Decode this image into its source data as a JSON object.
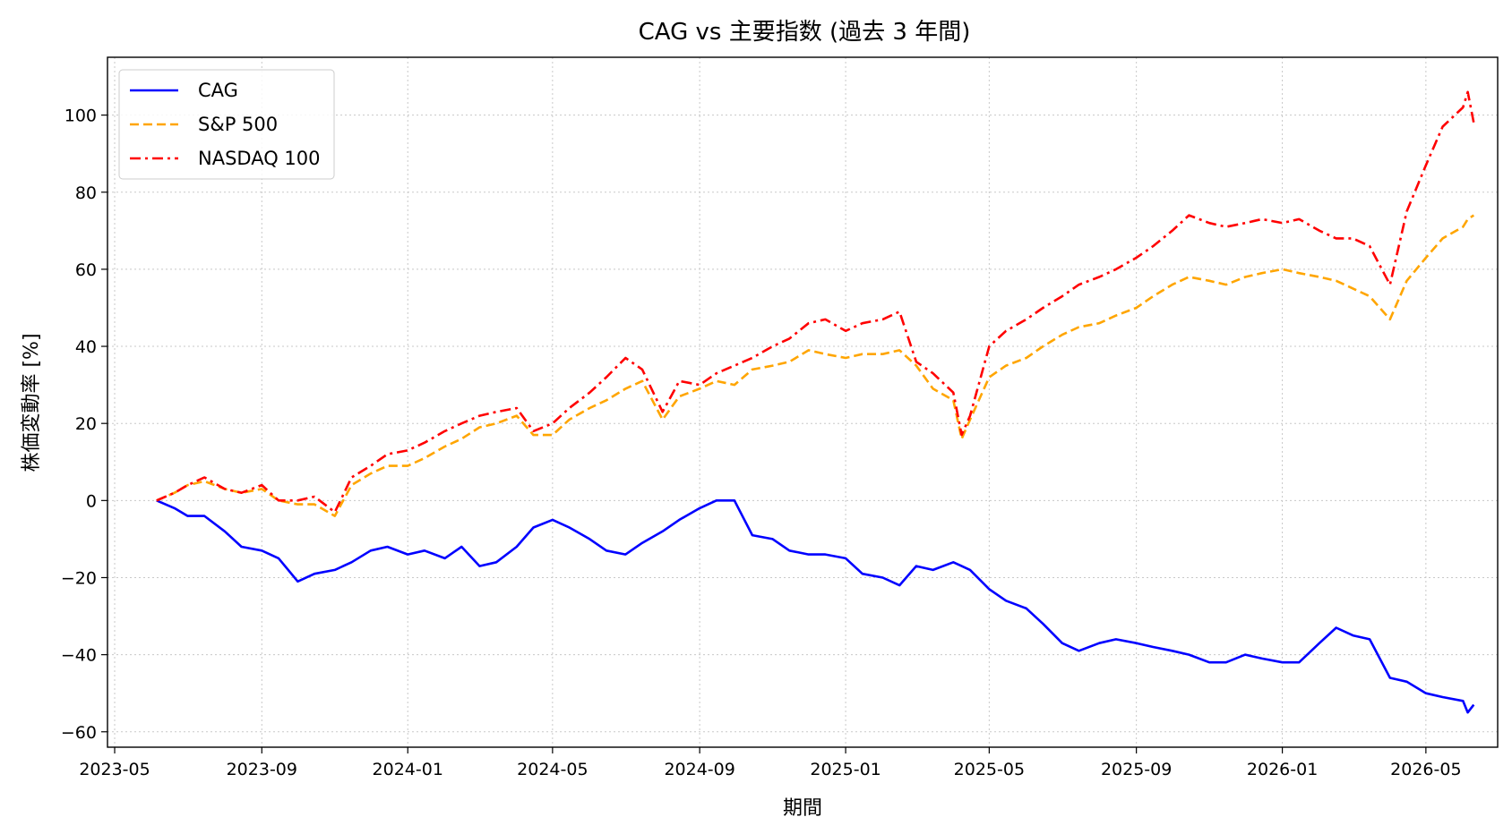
{
  "chart_data": {
    "type": "line",
    "title": "CAG vs 主要指数 (過去 3 年間)",
    "xlabel": "期間",
    "ylabel": "株価変動率 [%]",
    "x_ticks": [
      "2023-05",
      "2023-09",
      "2024-01",
      "2024-05",
      "2024-09",
      "2025-01",
      "2025-05",
      "2025-09",
      "2026-01",
      "2026-05"
    ],
    "y_ticks": [
      "−60",
      "−40",
      "−20",
      "0",
      "20",
      "40",
      "60",
      "80",
      "100"
    ],
    "xlim": [
      "2023-04-25",
      "2026-06-30"
    ],
    "ylim": [
      -64,
      115
    ],
    "grid": true,
    "legend_position": "top-left",
    "x": [
      "2023-06-05",
      "2023-06-20",
      "2023-07-01",
      "2023-07-15",
      "2023-08-01",
      "2023-08-15",
      "2023-09-01",
      "2023-09-15",
      "2023-10-01",
      "2023-10-15",
      "2023-11-01",
      "2023-11-15",
      "2023-12-01",
      "2023-12-15",
      "2024-01-01",
      "2024-01-15",
      "2024-02-01",
      "2024-02-15",
      "2024-03-01",
      "2024-03-15",
      "2024-04-01",
      "2024-04-15",
      "2024-05-01",
      "2024-05-15",
      "2024-06-01",
      "2024-06-15",
      "2024-07-01",
      "2024-07-15",
      "2024-08-01",
      "2024-08-15",
      "2024-09-01",
      "2024-09-15",
      "2024-09-30",
      "2024-10-15",
      "2024-11-01",
      "2024-11-15",
      "2024-12-01",
      "2024-12-15",
      "2025-01-01",
      "2025-01-15",
      "2025-02-01",
      "2025-02-15",
      "2025-03-01",
      "2025-03-15",
      "2025-04-01",
      "2025-04-08",
      "2025-04-15",
      "2025-05-01",
      "2025-05-15",
      "2025-06-01",
      "2025-06-15",
      "2025-07-01",
      "2025-07-15",
      "2025-08-01",
      "2025-08-15",
      "2025-09-01",
      "2025-09-15",
      "2025-10-01",
      "2025-10-15",
      "2025-11-01",
      "2025-11-15",
      "2025-12-01",
      "2025-12-15",
      "2026-01-01",
      "2026-01-15",
      "2026-02-01",
      "2026-02-15",
      "2026-03-01",
      "2026-03-15",
      "2026-04-01",
      "2026-04-15",
      "2026-05-01",
      "2026-05-15",
      "2026-06-01",
      "2026-06-05",
      "2026-06-10"
    ],
    "series": [
      {
        "name": "CAG",
        "color": "#0000ff",
        "style": "solid",
        "values": [
          0,
          -2,
          -4,
          -4,
          -8,
          -12,
          -13,
          -15,
          -21,
          -19,
          -18,
          -16,
          -13,
          -12,
          -14,
          -13,
          -15,
          -12,
          -17,
          -16,
          -12,
          -7,
          -5,
          -7,
          -10,
          -13,
          -14,
          -11,
          -8,
          -5,
          -2,
          0,
          0,
          -9,
          -10,
          -13,
          -14,
          -14,
          -15,
          -19,
          -20,
          -22,
          -17,
          -18,
          -16,
          -17,
          -18,
          -23,
          -26,
          -28,
          -32,
          -37,
          -39,
          -37,
          -36,
          -37,
          -38,
          -39,
          -40,
          -42,
          -42,
          -40,
          -41,
          -42,
          -42,
          -37,
          -33,
          -35,
          -36,
          -46,
          -47,
          -50,
          -51,
          -52,
          -55,
          -53
        ]
      },
      {
        "name": "S&P 500",
        "color": "#ffa500",
        "style": "dashed",
        "values": [
          0,
          2,
          4,
          5,
          3,
          2,
          3,
          0,
          -1,
          -1,
          -4,
          4,
          7,
          9,
          9,
          11,
          14,
          16,
          19,
          20,
          22,
          17,
          17,
          21,
          24,
          26,
          29,
          31,
          21,
          27,
          29,
          31,
          30,
          34,
          35,
          36,
          39,
          38,
          37,
          38,
          38,
          39,
          35,
          29,
          26,
          16,
          21,
          32,
          35,
          37,
          40,
          43,
          45,
          46,
          48,
          50,
          53,
          56,
          58,
          57,
          56,
          58,
          59,
          60,
          59,
          58,
          57,
          55,
          53,
          47,
          57,
          63,
          68,
          71,
          73,
          74
        ]
      },
      {
        "name": "NASDAQ 100",
        "color": "#ff0000",
        "style": "dashdot",
        "values": [
          0,
          2,
          4,
          6,
          3,
          2,
          4,
          0,
          0,
          1,
          -3,
          6,
          9,
          12,
          13,
          15,
          18,
          20,
          22,
          23,
          24,
          18,
          20,
          24,
          28,
          32,
          37,
          34,
          23,
          31,
          30,
          33,
          35,
          37,
          40,
          42,
          46,
          47,
          44,
          46,
          47,
          49,
          36,
          33,
          28,
          17,
          22,
          40,
          44,
          47,
          50,
          53,
          56,
          58,
          60,
          63,
          66,
          70,
          74,
          72,
          71,
          72,
          73,
          72,
          73,
          70,
          68,
          68,
          66,
          56,
          75,
          87,
          97,
          102,
          106,
          98
        ]
      }
    ]
  }
}
